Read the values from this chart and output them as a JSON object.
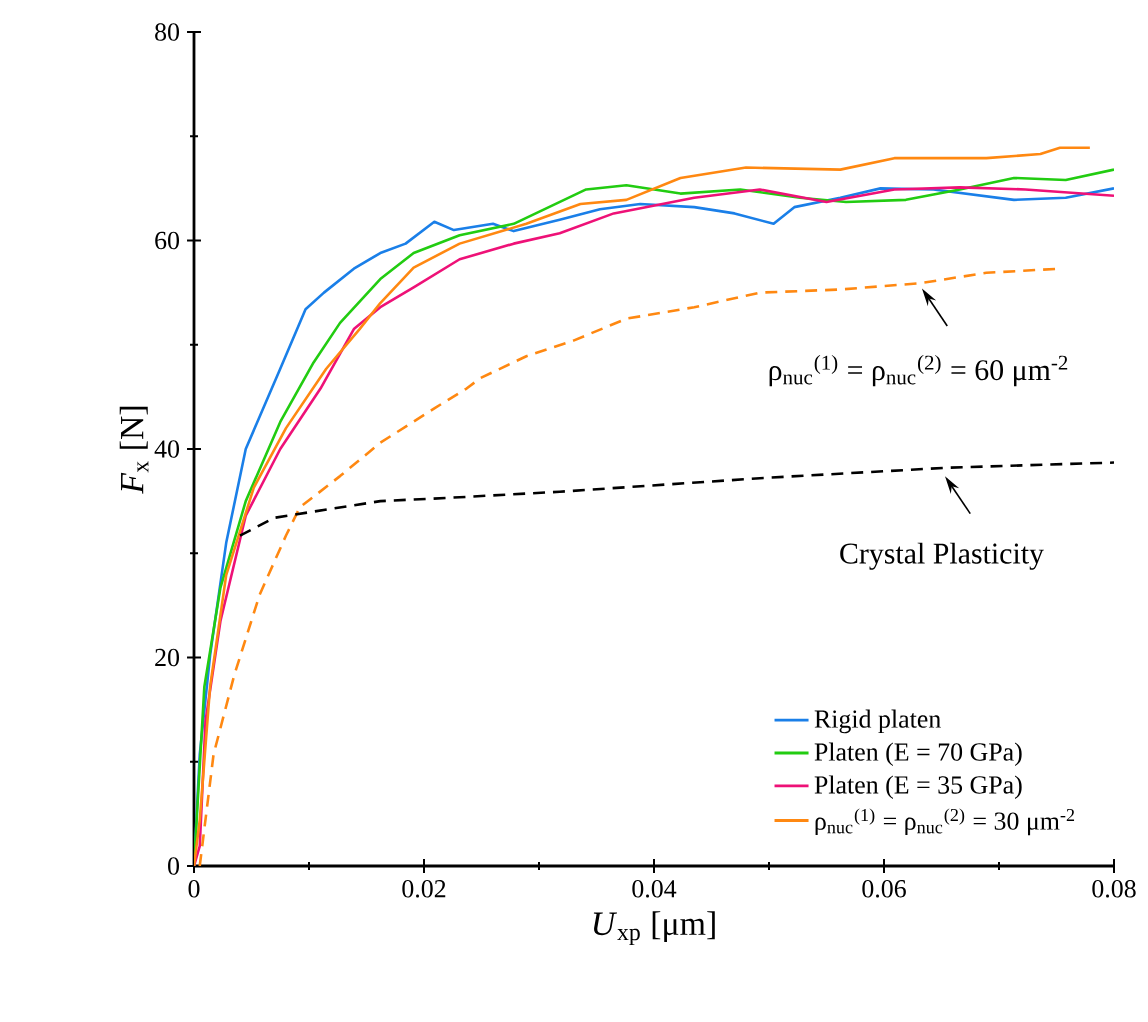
{
  "chart_data": {
    "type": "line",
    "xlabel": "*U*$_{xp}$ [μm]",
    "ylabel": "*F*$_{x}$ [N]",
    "xlim": [
      0,
      0.08
    ],
    "ylim": [
      0,
      80
    ],
    "xticks": [
      0,
      {
        "value": 0.01,
        "label": null
      },
      0.02,
      {
        "value": 0.03,
        "label": null
      },
      0.04,
      {
        "value": 0.05,
        "label": null
      },
      0.06,
      {
        "value": 0.07,
        "label": null
      },
      0.08
    ],
    "yticks": [
      0,
      {
        "value": 10,
        "label": null
      },
      20,
      {
        "value": 30,
        "label": null
      },
      40,
      {
        "value": 50,
        "label": null
      },
      60,
      {
        "value": 70,
        "label": null
      },
      80
    ],
    "legend": "bottom right",
    "line_style": "solid",
    "series": [
      {
        "name": "Rigid platen",
        "color": "#1a7fe8",
        "x": [
          0,
          0.0005,
          0.0014,
          0.0028,
          0.0045,
          0.0075,
          0.0097,
          0.0113,
          0.0139,
          0.0162,
          0.0184,
          0.0209,
          0.0226,
          0.026,
          0.0278,
          0.0318,
          0.0353,
          0.0388,
          0.0435,
          0.047,
          0.0504,
          0.0522,
          0.0562,
          0.0597,
          0.0643,
          0.0713,
          0.0758,
          0.08
        ],
        "values": [
          0,
          10.7,
          20.2,
          31,
          40,
          47.7,
          53.4,
          55,
          57.3,
          58.8,
          59.7,
          61.8,
          61,
          61.6,
          60.9,
          62,
          63,
          63.5,
          63.2,
          62.6,
          61.6,
          63.2,
          64.1,
          65,
          64.9,
          63.9,
          64.1,
          65
        ]
      },
      {
        "name": "Platen (E = 70 GPa)",
        "color": "#22cc11",
        "x": [
          0,
          0.0009,
          0.0023,
          0.0045,
          0.0075,
          0.0104,
          0.0127,
          0.0162,
          0.0191,
          0.0231,
          0.0278,
          0.0341,
          0.0376,
          0.0423,
          0.0475,
          0.0527,
          0.0567,
          0.0619,
          0.0666,
          0.0713,
          0.0758,
          0.08
        ],
        "values": [
          0,
          17.2,
          26.7,
          35,
          42.6,
          48.3,
          52.1,
          56.3,
          58.8,
          60.5,
          61.6,
          64.9,
          65.3,
          64.5,
          64.9,
          64.1,
          63.7,
          63.9,
          64.9,
          66,
          65.8,
          66.8
        ]
      },
      {
        "name": "Platen (E = 35 GPa)",
        "color": "#ee1177",
        "x": [
          0,
          0.0005,
          0.001,
          0.0023,
          0.0045,
          0.0075,
          0.011,
          0.0139,
          0.0162,
          0.0191,
          0.0231,
          0.0278,
          0.0318,
          0.0365,
          0.0435,
          0.0492,
          0.055,
          0.0609,
          0.0666,
          0.0723,
          0.08
        ],
        "values": [
          0,
          1.9,
          13.9,
          23.5,
          33.6,
          40,
          45.8,
          51.5,
          53.6,
          55.5,
          58.2,
          59.7,
          60.7,
          62.6,
          64.1,
          64.9,
          63.7,
          64.9,
          65.1,
          64.9,
          64.3
        ]
      },
      {
        "name": "ρ$_{nuc}$$^{(1)}$ = ρ$_{nuc}$$^{(2)}$ = 30 μm$^{-2}$",
        "color": "#ff8811",
        "x": [
          0,
          0.0005,
          0.0014,
          0.0028,
          0.0052,
          0.008,
          0.0115,
          0.0144,
          0.0162,
          0.0191,
          0.0231,
          0.0289,
          0.0336,
          0.0376,
          0.0423,
          0.048,
          0.0562,
          0.0609,
          0.0689,
          0.0736,
          0.0753,
          0.0779
        ],
        "values": [
          0,
          4.4,
          17.2,
          27.9,
          36.3,
          42,
          47.7,
          51.5,
          54,
          57.4,
          59.7,
          61.6,
          63.5,
          63.9,
          66,
          67,
          66.8,
          67.9,
          67.9,
          68.3,
          68.9,
          68.9
        ]
      },
      {
        "color": "#ff8811",
        "line_style": "dashed",
        "x": [
          0.0005,
          0.0017,
          0.0035,
          0.0057,
          0.008,
          0.0092,
          0.0127,
          0.0162,
          0.0209,
          0.0237,
          0.0249,
          0.0289,
          0.033,
          0.0376,
          0.0435,
          0.0492,
          0.0562,
          0.0631,
          0.0689,
          0.0753
        ],
        "values": [
          0,
          10.7,
          18.3,
          26,
          31.7,
          34.4,
          37.4,
          40.6,
          43.9,
          45.8,
          46.8,
          48.9,
          50.4,
          52.5,
          53.6,
          55,
          55.3,
          55.9,
          56.9,
          57.3
        ]
      },
      {
        "color": "#000000",
        "line_style": "dashed",
        "x": [
          0.004,
          0.007,
          0.0104,
          0.0162,
          0.0219,
          0.0318,
          0.0492,
          0.0654,
          0.08
        ],
        "values": [
          31.7,
          33.4,
          34,
          35,
          35.3,
          35.9,
          37.2,
          38.2,
          38.7
        ]
      }
    ],
    "annotations": [
      {
        "text": "ρ$_{nuc}$$^{(1)}$ = ρ$_{nuc}$$^{(2)}$ = 60 μm$^{-2}$",
        "x": 0.063,
        "y": 56
      },
      {
        "text": "Crystal Plasticity",
        "x": 0.065,
        "y": 38
      }
    ]
  }
}
